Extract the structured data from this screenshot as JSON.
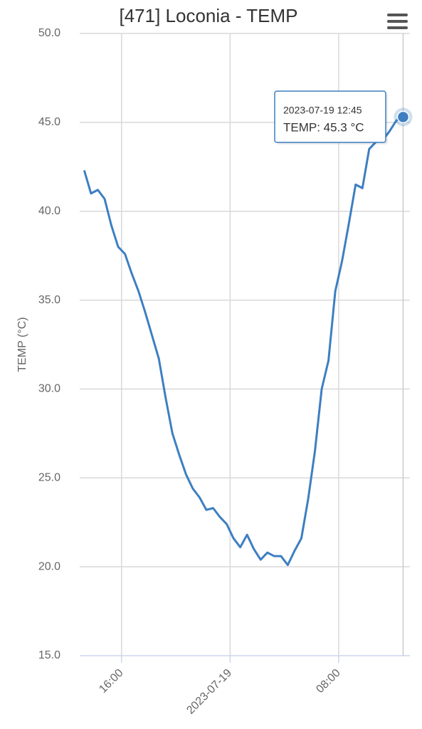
{
  "chart_data": {
    "type": "line",
    "title": "[471] Loconia - TEMP",
    "ylabel": "TEMP (°C)",
    "x": [
      "2023-07-18 13:15",
      "2023-07-18 13:45",
      "2023-07-18 14:15",
      "2023-07-18 14:45",
      "2023-07-18 15:15",
      "2023-07-18 15:45",
      "2023-07-18 16:15",
      "2023-07-18 16:45",
      "2023-07-18 17:15",
      "2023-07-18 17:45",
      "2023-07-18 18:15",
      "2023-07-18 18:45",
      "2023-07-18 19:15",
      "2023-07-18 19:45",
      "2023-07-18 20:15",
      "2023-07-18 20:45",
      "2023-07-18 21:15",
      "2023-07-18 21:45",
      "2023-07-18 22:15",
      "2023-07-18 22:45",
      "2023-07-18 23:15",
      "2023-07-18 23:45",
      "2023-07-19 00:15",
      "2023-07-19 00:45",
      "2023-07-19 01:15",
      "2023-07-19 01:45",
      "2023-07-19 02:15",
      "2023-07-19 02:45",
      "2023-07-19 03:15",
      "2023-07-19 03:45",
      "2023-07-19 04:15",
      "2023-07-19 04:45",
      "2023-07-19 05:15",
      "2023-07-19 05:45",
      "2023-07-19 06:15",
      "2023-07-19 06:45",
      "2023-07-19 07:15",
      "2023-07-19 07:45",
      "2023-07-19 08:15",
      "2023-07-19 08:45",
      "2023-07-19 09:15",
      "2023-07-19 09:45",
      "2023-07-19 10:15",
      "2023-07-19 10:45",
      "2023-07-19 11:15",
      "2023-07-19 11:45",
      "2023-07-19 12:15",
      "2023-07-19 12:45"
    ],
    "series": [
      {
        "name": "TEMP",
        "color": "#3d7fc1",
        "values": [
          42.3,
          41.0,
          41.2,
          40.7,
          39.2,
          38.0,
          37.6,
          36.5,
          35.5,
          34.3,
          33.0,
          31.7,
          29.5,
          27.5,
          26.3,
          25.2,
          24.4,
          23.9,
          23.2,
          23.3,
          22.8,
          22.4,
          21.6,
          21.1,
          21.8,
          21.0,
          20.4,
          20.8,
          20.6,
          20.6,
          20.1,
          20.9,
          21.6,
          23.8,
          26.5,
          30.0,
          31.6,
          35.5,
          37.2,
          39.3,
          41.5,
          41.3,
          43.5,
          43.9,
          44.0,
          44.5,
          45.1,
          45.3
        ]
      }
    ],
    "xlim": [
      "2023-07-18 12:55",
      "2023-07-19 13:15"
    ],
    "xticks": [
      {
        "value": "2023-07-18 16:00",
        "label": "16:00"
      },
      {
        "value": "2023-07-19 00:00",
        "label": "2023-07-19"
      },
      {
        "value": "2023-07-19 08:00",
        "label": "08:00"
      }
    ],
    "ylim": [
      15,
      50
    ],
    "yticks": [
      {
        "value": 15,
        "label": "15.0"
      },
      {
        "value": 20,
        "label": "20.0"
      },
      {
        "value": 25,
        "label": "25.0"
      },
      {
        "value": 30,
        "label": "30.0"
      },
      {
        "value": 35,
        "label": "35.0"
      },
      {
        "value": 40,
        "label": "40.0"
      },
      {
        "value": 45,
        "label": "45.0"
      },
      {
        "value": 50,
        "label": "50.0"
      }
    ],
    "grid": true,
    "tooltip": {
      "text": "TEMP: 45.3 °C"
    }
  }
}
